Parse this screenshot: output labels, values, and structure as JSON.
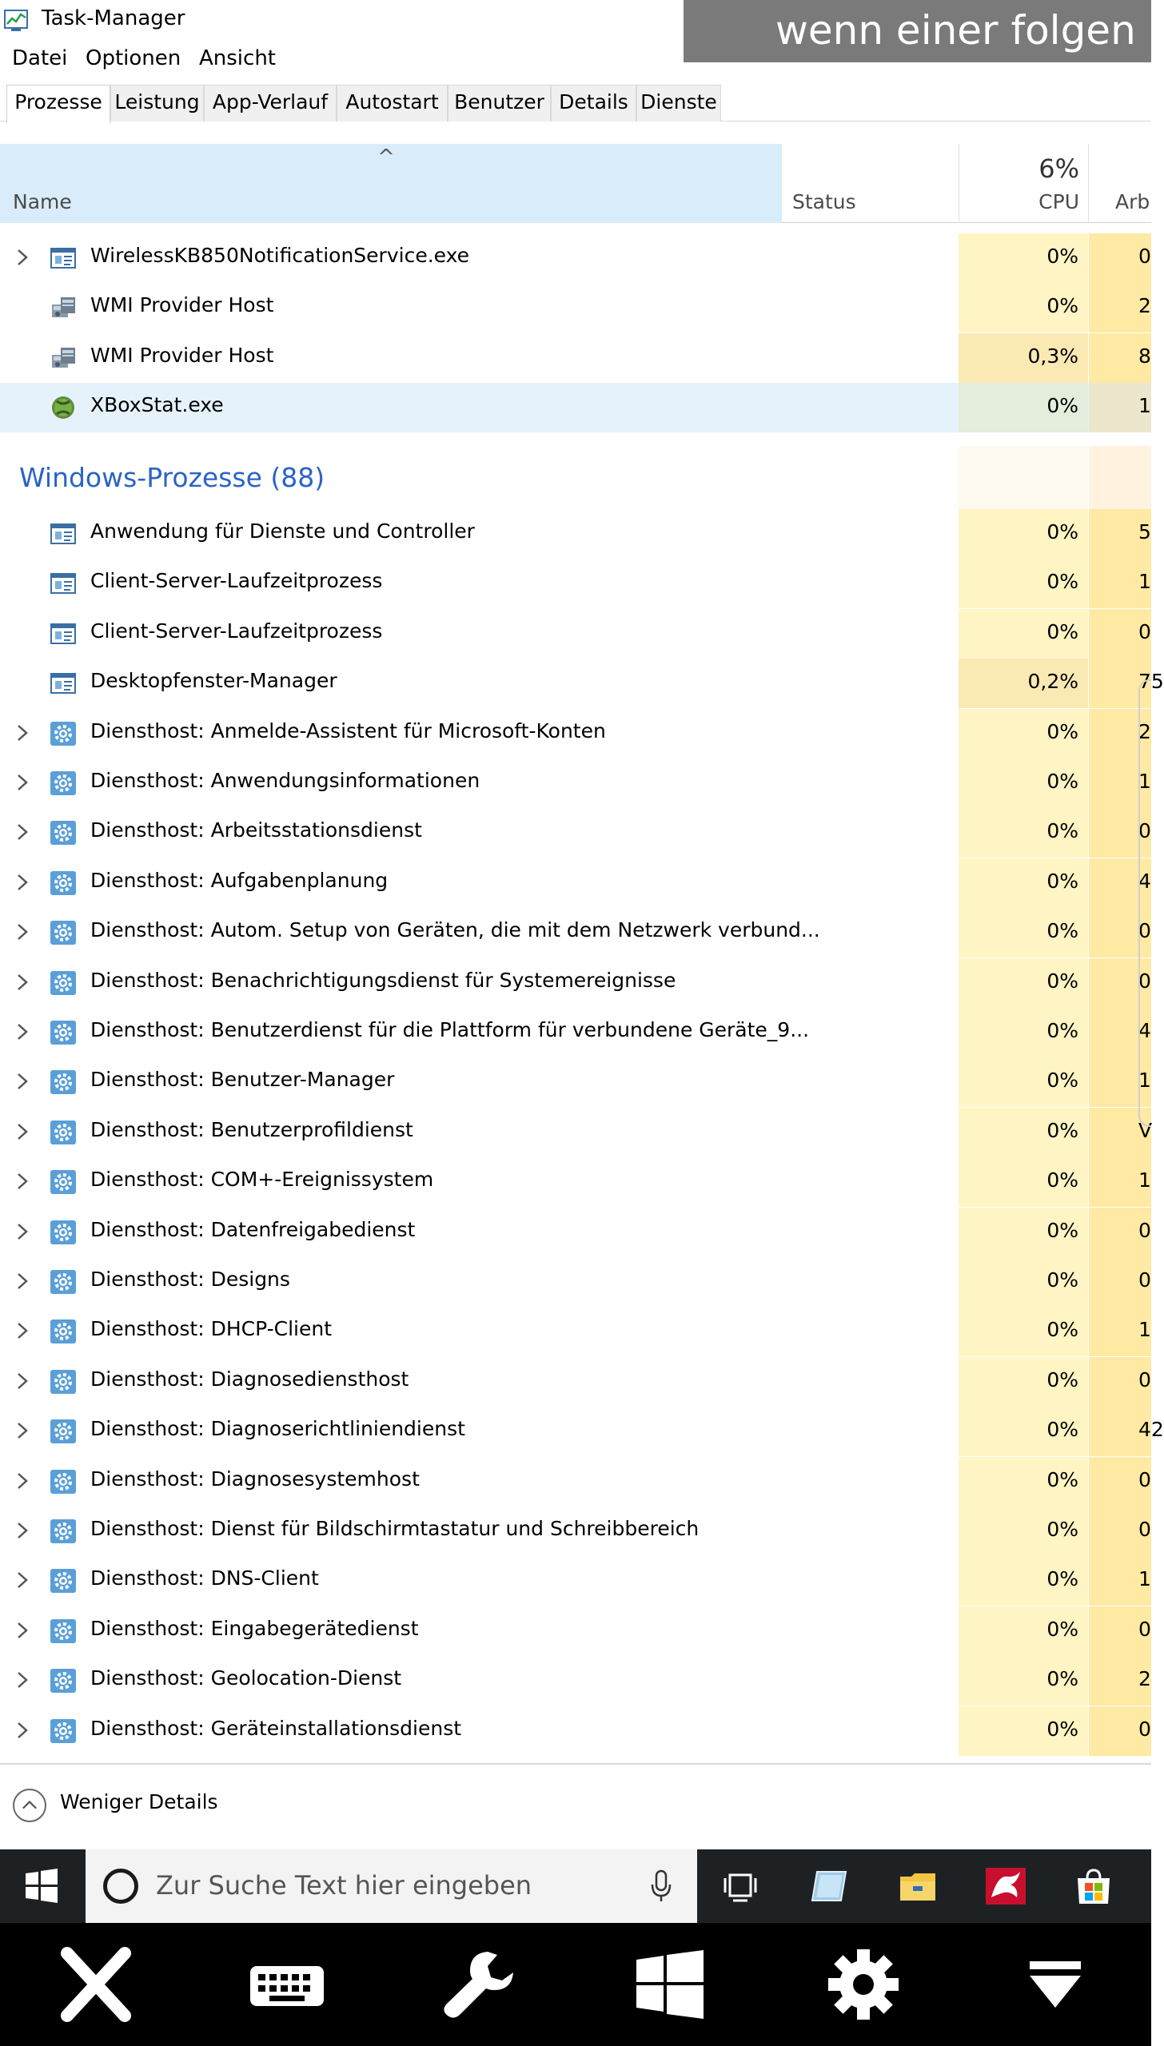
{
  "window": {
    "title": "Task-Manager"
  },
  "overlay": {
    "text": "wenn einer folgen"
  },
  "menu": [
    "Datei",
    "Optionen",
    "Ansicht"
  ],
  "tabs": [
    "Prozesse",
    "Leistung",
    "App-Verlauf",
    "Autostart",
    "Benutzer",
    "Details",
    "Dienste"
  ],
  "active_tab": "Prozesse",
  "columns": {
    "sort_indicator": "^",
    "name": "Name",
    "status": "Status",
    "cpu_total": "6%",
    "cpu": "CPU",
    "memory": "Arb"
  },
  "rows_before_group": [
    {
      "name": "WirelessKB850NotificationService.exe",
      "icon": "window-app-icon",
      "expandable": true,
      "cpu": "0%",
      "mem": "0"
    },
    {
      "name": "WMI Provider Host",
      "icon": "wmi-provider-icon",
      "expandable": false,
      "cpu": "0%",
      "mem": "2"
    },
    {
      "name": "WMI Provider Host",
      "icon": "wmi-provider-icon",
      "expandable": false,
      "cpu": "0,3%",
      "mem": "8",
      "hot": true
    },
    {
      "name": "XBoxStat.exe",
      "icon": "xbox-icon",
      "expandable": false,
      "cpu": "0%",
      "mem": "1",
      "selected": true
    }
  ],
  "group": {
    "title": "Windows-Prozesse (88)"
  },
  "rows_after_group": [
    {
      "name": "Anwendung für Dienste und Controller",
      "icon": "window-app-icon",
      "expandable": false,
      "cpu": "0%",
      "mem": "5"
    },
    {
      "name": "Client-Server-Laufzeitprozess",
      "icon": "window-app-icon",
      "expandable": false,
      "cpu": "0%",
      "mem": "1"
    },
    {
      "name": "Client-Server-Laufzeitprozess",
      "icon": "window-app-icon",
      "expandable": false,
      "cpu": "0%",
      "mem": "0"
    },
    {
      "name": "Desktopfenster-Manager",
      "icon": "window-app-icon",
      "expandable": false,
      "cpu": "0,2%",
      "mem": "75",
      "hot": true
    },
    {
      "name": "Diensthost: Anmelde-Assistent für Microsoft-Konten",
      "icon": "gear-service-icon",
      "expandable": true,
      "cpu": "0%",
      "mem": "2"
    },
    {
      "name": "Diensthost: Anwendungsinformationen",
      "icon": "gear-service-icon",
      "expandable": true,
      "cpu": "0%",
      "mem": "1"
    },
    {
      "name": "Diensthost: Arbeitsstationsdienst",
      "icon": "gear-service-icon",
      "expandable": true,
      "cpu": "0%",
      "mem": "0"
    },
    {
      "name": "Diensthost: Aufgabenplanung",
      "icon": "gear-service-icon",
      "expandable": true,
      "cpu": "0%",
      "mem": "4"
    },
    {
      "name": "Diensthost: Autom. Setup von Geräten, die mit dem Netzwerk verbund...",
      "icon": "gear-service-icon",
      "expandable": true,
      "cpu": "0%",
      "mem": "0"
    },
    {
      "name": "Diensthost: Benachrichtigungsdienst für Systemereignisse",
      "icon": "gear-service-icon",
      "expandable": true,
      "cpu": "0%",
      "mem": "0"
    },
    {
      "name": "Diensthost: Benutzerdienst für die Plattform für verbundene Geräte_9...",
      "icon": "gear-service-icon",
      "expandable": true,
      "cpu": "0%",
      "mem": "4"
    },
    {
      "name": "Diensthost: Benutzer-Manager",
      "icon": "gear-service-icon",
      "expandable": true,
      "cpu": "0%",
      "mem": "1"
    },
    {
      "name": "Diensthost: Benutzerprofildienst",
      "icon": "gear-service-icon",
      "expandable": true,
      "cpu": "0%",
      "mem": "V"
    },
    {
      "name": "Diensthost: COM+-Ereignissystem",
      "icon": "gear-service-icon",
      "expandable": true,
      "cpu": "0%",
      "mem": "1"
    },
    {
      "name": "Diensthost: Datenfreigabedienst",
      "icon": "gear-service-icon",
      "expandable": true,
      "cpu": "0%",
      "mem": "0"
    },
    {
      "name": "Diensthost: Designs",
      "icon": "gear-service-icon",
      "expandable": true,
      "cpu": "0%",
      "mem": "0"
    },
    {
      "name": "Diensthost: DHCP-Client",
      "icon": "gear-service-icon",
      "expandable": true,
      "cpu": "0%",
      "mem": "1"
    },
    {
      "name": "Diensthost: Diagnosediensthost",
      "icon": "gear-service-icon",
      "expandable": true,
      "cpu": "0%",
      "mem": "0"
    },
    {
      "name": "Diensthost: Diagnoserichtliniendienst",
      "icon": "gear-service-icon",
      "expandable": true,
      "cpu": "0%",
      "mem": "42"
    },
    {
      "name": "Diensthost: Diagnosesystemhost",
      "icon": "gear-service-icon",
      "expandable": true,
      "cpu": "0%",
      "mem": "0"
    },
    {
      "name": "Diensthost: Dienst für Bildschirmtastatur und Schreibbereich",
      "icon": "gear-service-icon",
      "expandable": true,
      "cpu": "0%",
      "mem": "0"
    },
    {
      "name": "Diensthost: DNS-Client",
      "icon": "gear-service-icon",
      "expandable": true,
      "cpu": "0%",
      "mem": "1"
    },
    {
      "name": "Diensthost: Eingabegerätedienst",
      "icon": "gear-service-icon",
      "expandable": true,
      "cpu": "0%",
      "mem": "0"
    },
    {
      "name": "Diensthost: Geolocation-Dienst",
      "icon": "gear-service-icon",
      "expandable": true,
      "cpu": "0%",
      "mem": "2"
    },
    {
      "name": "Diensthost: Geräteinstallationsdienst",
      "icon": "gear-service-icon",
      "expandable": true,
      "cpu": "0%",
      "mem": "0"
    }
  ],
  "footer": {
    "details_label": "Weniger Details",
    "icon": "chevron-up-circle-icon"
  },
  "taskbar": {
    "search_placeholder": "Zur Suche Text hier eingeben",
    "icons": [
      "windows-start-icon",
      "cortana-icon",
      "microphone-icon",
      "task-view-icon",
      "notepad-app-icon",
      "file-explorer-icon",
      "dragon-app-icon",
      "store-icon"
    ]
  },
  "remote_toolbar": {
    "icons": [
      "close-icon",
      "keyboard-icon",
      "wrench-icon",
      "windows-icon",
      "gear-icon",
      "dropdown-triangle-icon"
    ]
  },
  "colors": {
    "header_selected": "#d9ecf9",
    "group_title": "#2a64c4",
    "cpu_cell": "#fff4c4",
    "mem_cell": "#ffe9a3",
    "taskbar": "#1e2124",
    "banner": "#7a7a7a"
  }
}
